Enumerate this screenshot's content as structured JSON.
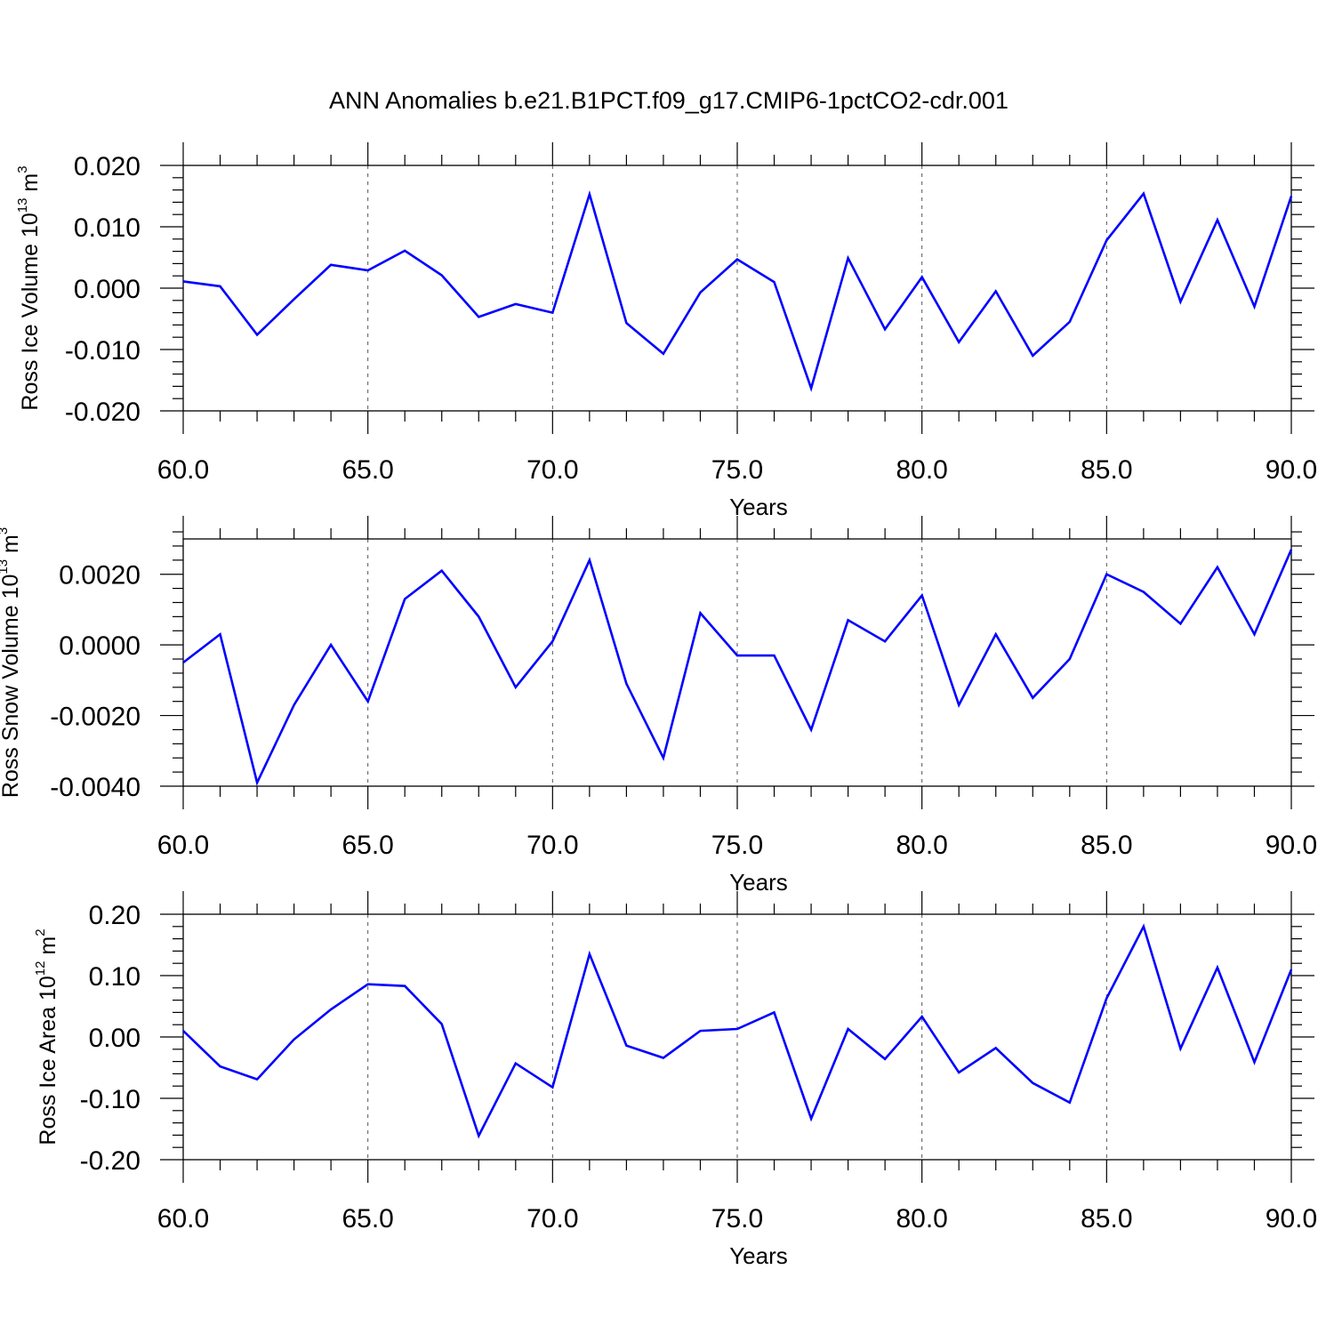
{
  "title": "ANN Anomalies b.e21.B1PCT.f09_g17.CMIP6-1pctCO2-cdr.001",
  "chart_data": [
    {
      "type": "line",
      "title": "ANN Anomalies b.e21.B1PCT.f09_g17.CMIP6-1pctCO2-cdr.001",
      "xlabel": "Years",
      "ylabel": {
        "text": "Ross Ice Volume 10",
        "sup": "13",
        "unit": " m",
        "unit_sup": "3"
      },
      "xlim": [
        60,
        90
      ],
      "ylim": [
        -0.02,
        0.02
      ],
      "x_ticks": [
        "60.0",
        "65.0",
        "70.0",
        "75.0",
        "80.0",
        "85.0",
        "90.0"
      ],
      "y_tick_values": [
        0.02,
        0.01,
        0.0,
        -0.01,
        -0.02
      ],
      "y_tick_labels": [
        "0.020",
        "0.010",
        "0.000",
        "-0.010",
        "-0.020"
      ],
      "line_color": "#0000ff",
      "grid": "vertical dashed at major x ticks",
      "x": [
        60,
        61,
        62,
        63,
        64,
        65,
        66,
        67,
        68,
        69,
        70,
        71,
        72,
        73,
        74,
        75,
        76,
        77,
        78,
        79,
        80,
        81,
        82,
        83,
        84,
        85,
        86,
        87,
        88,
        89,
        90
      ],
      "values": [
        0.0011,
        0.0003,
        -0.0076,
        -0.0018,
        0.0038,
        0.0029,
        0.0061,
        0.0021,
        -0.0047,
        -0.0026,
        -0.004,
        0.0153,
        -0.0057,
        -0.0107,
        -0.0007,
        0.0047,
        0.001,
        -0.0163,
        0.0049,
        -0.0067,
        0.0018,
        -0.0088,
        -0.0005,
        -0.011,
        -0.0055,
        0.0078,
        0.0154,
        -0.0022,
        0.0111,
        -0.003,
        0.015
      ]
    },
    {
      "type": "line",
      "xlabel": "Years",
      "ylabel": {
        "text": "Ross Snow Volume 10",
        "sup": "13",
        "unit": " m",
        "unit_sup": "3"
      },
      "xlim": [
        60,
        90
      ],
      "ylim": [
        -0.004,
        0.003
      ],
      "x_ticks": [
        "60.0",
        "65.0",
        "70.0",
        "75.0",
        "80.0",
        "85.0",
        "90.0"
      ],
      "y_tick_values": [
        0.002,
        0.0,
        -0.002,
        -0.004
      ],
      "y_tick_labels": [
        "0.0020",
        "0.0000",
        "-0.0020",
        "-0.0040"
      ],
      "line_color": "#0000ff",
      "grid": "vertical dashed at major x ticks",
      "x": [
        60,
        61,
        62,
        63,
        64,
        65,
        66,
        67,
        68,
        69,
        70,
        71,
        72,
        73,
        74,
        75,
        76,
        77,
        78,
        79,
        80,
        81,
        82,
        83,
        84,
        85,
        86,
        87,
        88,
        89,
        90
      ],
      "values": [
        -0.0005,
        0.0003,
        -0.0039,
        -0.0017,
        0.0,
        -0.0016,
        0.0013,
        0.0021,
        0.0008,
        -0.0012,
        0.0001,
        0.0024,
        -0.0011,
        -0.0032,
        0.0009,
        -0.0003,
        -0.0003,
        -0.0024,
        0.0007,
        0.0001,
        0.0014,
        -0.0017,
        0.0003,
        -0.0015,
        -0.0004,
        0.002,
        0.0015,
        0.0006,
        0.0022,
        0.0003,
        0.0027
      ]
    },
    {
      "type": "line",
      "xlabel": "Years",
      "ylabel": {
        "text": "Ross Ice Area 10",
        "sup": "12",
        "unit": " m",
        "unit_sup": "2"
      },
      "xlim": [
        60,
        90
      ],
      "ylim": [
        -0.2,
        0.2
      ],
      "x_ticks": [
        "60.0",
        "65.0",
        "70.0",
        "75.0",
        "80.0",
        "85.0",
        "90.0"
      ],
      "y_tick_values": [
        0.2,
        0.1,
        0.0,
        -0.1,
        -0.2
      ],
      "y_tick_labels": [
        "0.20",
        "0.10",
        "0.00",
        "-0.10",
        "-0.20"
      ],
      "line_color": "#0000ff",
      "grid": "vertical dashed at major x ticks",
      "x": [
        60,
        61,
        62,
        63,
        64,
        65,
        66,
        67,
        68,
        69,
        70,
        71,
        72,
        73,
        74,
        75,
        76,
        77,
        78,
        79,
        80,
        81,
        82,
        83,
        84,
        85,
        86,
        87,
        88,
        89,
        90
      ],
      "values": [
        0.01,
        -0.048,
        -0.069,
        -0.004,
        0.045,
        0.086,
        0.083,
        0.021,
        -0.161,
        -0.043,
        -0.082,
        0.135,
        -0.014,
        -0.034,
        0.01,
        0.013,
        0.04,
        -0.133,
        0.013,
        -0.036,
        0.033,
        -0.058,
        -0.018,
        -0.075,
        -0.107,
        0.063,
        0.18,
        -0.019,
        0.113,
        -0.041,
        0.11
      ]
    }
  ]
}
